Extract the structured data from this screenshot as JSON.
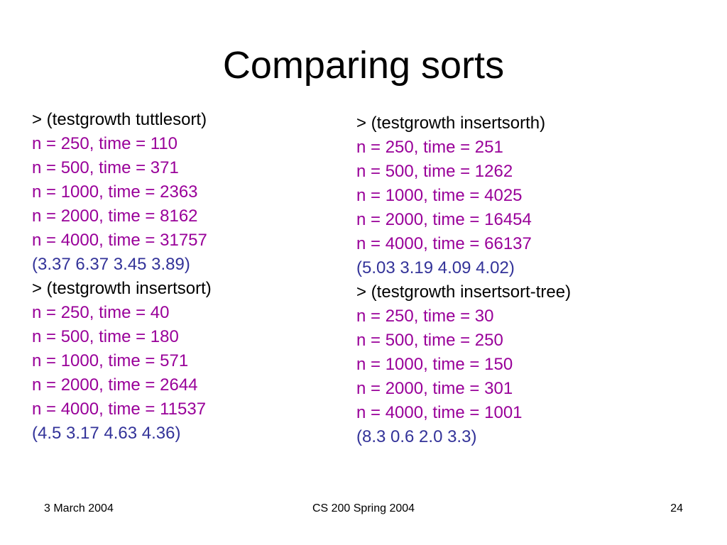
{
  "slide": {
    "title": "Comparing sorts",
    "colors": {
      "command": "#000000",
      "result": "#990099",
      "ratio": "#333399"
    },
    "left_column": [
      {
        "kind": "cmd",
        "text": "> (testgrowth tuttlesort)"
      },
      {
        "kind": "res",
        "text": "n = 250, time = 110"
      },
      {
        "kind": "res",
        "text": "n = 500, time = 371"
      },
      {
        "kind": "res",
        "text": "n = 1000, time = 2363"
      },
      {
        "kind": "res",
        "text": "n = 2000, time = 8162"
      },
      {
        "kind": "res",
        "text": "n = 4000, time = 31757"
      },
      {
        "kind": "ratio",
        "text": "(3.37 6.37 3.45 3.89)"
      },
      {
        "kind": "cmd",
        "text": "> (testgrowth insertsort)"
      },
      {
        "kind": "res",
        "text": "n = 250, time = 40"
      },
      {
        "kind": "res",
        "text": "n = 500, time = 180"
      },
      {
        "kind": "res",
        "text": "n = 1000, time = 571"
      },
      {
        "kind": "res",
        "text": "n = 2000, time = 2644"
      },
      {
        "kind": "res",
        "text": "n = 4000, time = 11537"
      },
      {
        "kind": "ratio",
        "text": "(4.5 3.17 4.63 4.36)"
      }
    ],
    "right_column": [
      {
        "kind": "cmd",
        "text": "> (testgrowth insertsorth)"
      },
      {
        "kind": "res",
        "text": "n = 250, time = 251"
      },
      {
        "kind": "res",
        "text": "n = 500, time = 1262"
      },
      {
        "kind": "res",
        "text": "n = 1000, time = 4025"
      },
      {
        "kind": "res",
        "text": "n = 2000, time = 16454"
      },
      {
        "kind": "res",
        "text": "n = 4000, time = 66137"
      },
      {
        "kind": "ratio",
        "text": "(5.03 3.19 4.09 4.02)"
      },
      {
        "kind": "cmd",
        "text": "> (testgrowth insertsort-tree)"
      },
      {
        "kind": "res",
        "text": "n = 250, time = 30"
      },
      {
        "kind": "res",
        "text": "n = 500, time = 250"
      },
      {
        "kind": "res",
        "text": "n = 1000, time = 150"
      },
      {
        "kind": "res",
        "text": "n = 2000, time = 301"
      },
      {
        "kind": "res",
        "text": "n = 4000, time = 1001"
      },
      {
        "kind": "ratio",
        "text": "(8.3 0.6 2.0 3.3)"
      }
    ],
    "footer": {
      "date": "3 March 2004",
      "course": "CS 200 Spring 2004",
      "page_number": "24"
    }
  }
}
